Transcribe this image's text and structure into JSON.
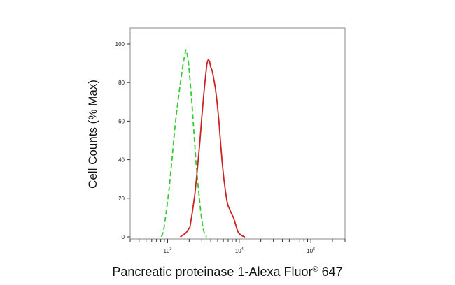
{
  "chart_data": {
    "type": "line",
    "title": "",
    "xlabel": "Pancreatic proteinase 1-Alexa Fluor",
    "xlabel_mark": "®",
    "xlabel_suffix": " 647",
    "ylabel": "Cell Counts (% Max)",
    "x_scale": "log",
    "xlim": [
      300,
      300000
    ],
    "ylim": [
      0,
      105
    ],
    "y_ticks": [
      "0",
      "20",
      "40",
      "60",
      "80",
      "100"
    ],
    "x_ticks": [
      {
        "base": "10",
        "exp": "3",
        "value": 1000
      },
      {
        "base": "10",
        "exp": "4",
        "value": 10000
      },
      {
        "base": "10",
        "exp": "5",
        "value": 100000
      }
    ],
    "grid": false,
    "legend": "none",
    "series": [
      {
        "color": "#33cc33",
        "style": "dashed",
        "x": [
          820,
          880,
          950,
          1050,
          1150,
          1250,
          1350,
          1450,
          1550,
          1650,
          1750,
          1800,
          1850,
          1950,
          2050,
          2200,
          2350,
          2500,
          2700,
          2900,
          3100,
          3300,
          3500
        ],
        "y": [
          0,
          3,
          12,
          25,
          40,
          55,
          66,
          75,
          83,
          90,
          95,
          97,
          96,
          91,
          82,
          68,
          52,
          38,
          24,
          13,
          5,
          1,
          0
        ]
      },
      {
        "color": "#cc2222",
        "style": "solid",
        "x": [
          1500,
          1800,
          2050,
          2200,
          2400,
          2600,
          2800,
          3000,
          3200,
          3400,
          3550,
          3700,
          3850,
          4000,
          4200,
          4400,
          4650,
          4900,
          5200,
          5500,
          5800,
          6100,
          6400,
          6700,
          7000,
          7400,
          7800,
          8300,
          8800,
          9300,
          9800,
          10500,
          11300,
          12000
        ],
        "y": [
          0,
          2,
          5,
          12,
          22,
          35,
          48,
          62,
          74,
          84,
          90,
          92,
          91,
          88,
          86,
          82,
          77,
          70,
          60,
          48,
          38,
          30,
          24,
          19,
          16,
          14,
          12,
          10,
          7,
          4,
          2,
          1,
          0.3,
          0
        ]
      }
    ]
  }
}
